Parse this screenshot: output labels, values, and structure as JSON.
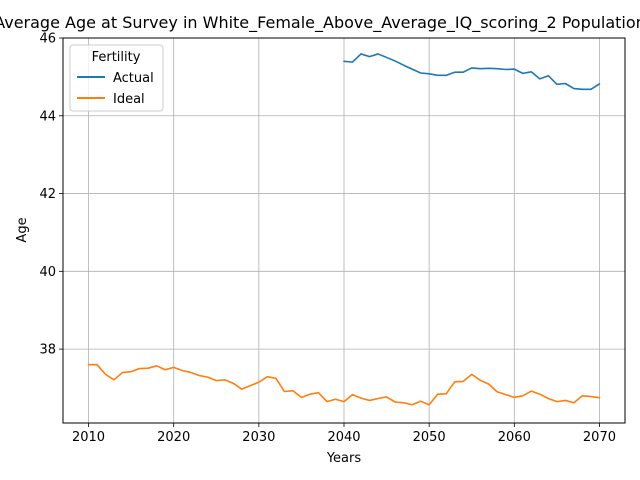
{
  "chart_data": {
    "type": "line",
    "title": "Average Age at Survey in White_Female_Above_Average_IQ_scoring_2 Population",
    "xlabel": "Years",
    "ylabel": "Age",
    "xlim": [
      2007,
      2073
    ],
    "ylim": [
      36.1,
      46.0
    ],
    "xticks": [
      2010,
      2020,
      2030,
      2040,
      2050,
      2060,
      2070
    ],
    "yticks": [
      38,
      40,
      42,
      44,
      46
    ],
    "grid": true,
    "legend": {
      "title": "Fertility",
      "placement": "upper-left"
    },
    "series": [
      {
        "name": "Actual",
        "color": "#1f77b4",
        "x": [
          2040,
          2041,
          2042,
          2043,
          2044,
          2045,
          2046,
          2047,
          2048,
          2049,
          2050,
          2051,
          2052,
          2053,
          2054,
          2055,
          2056,
          2057,
          2058,
          2059,
          2060,
          2061,
          2062,
          2063,
          2064,
          2065,
          2066,
          2067,
          2068,
          2069,
          2070
        ],
        "values": [
          45.4,
          45.38,
          45.59,
          45.52,
          45.59,
          45.5,
          45.41,
          45.3,
          45.2,
          45.1,
          45.08,
          45.04,
          45.04,
          45.12,
          45.12,
          45.23,
          45.21,
          45.22,
          45.21,
          45.19,
          45.2,
          45.09,
          45.13,
          44.95,
          45.03,
          44.81,
          44.83,
          44.7,
          44.68,
          44.68,
          44.82
        ]
      },
      {
        "name": "Ideal",
        "color": "#ff7f0e",
        "x": [
          2010,
          2011,
          2012,
          2013,
          2014,
          2015,
          2016,
          2017,
          2018,
          2019,
          2020,
          2021,
          2022,
          2023,
          2024,
          2025,
          2026,
          2027,
          2028,
          2029,
          2030,
          2031,
          2032,
          2033,
          2034,
          2035,
          2036,
          2037,
          2038,
          2039,
          2040,
          2041,
          2042,
          2043,
          2044,
          2045,
          2046,
          2047,
          2048,
          2049,
          2050,
          2051,
          2052,
          2053,
          2054,
          2055,
          2056,
          2057,
          2058,
          2059,
          2060,
          2061,
          2062,
          2063,
          2064,
          2065,
          2066,
          2067,
          2068,
          2069,
          2070
        ],
        "values": [
          37.6,
          37.6,
          37.35,
          37.21,
          37.4,
          37.42,
          37.5,
          37.51,
          37.57,
          37.47,
          37.53,
          37.45,
          37.4,
          37.32,
          37.28,
          37.19,
          37.21,
          37.12,
          36.97,
          37.06,
          37.15,
          37.29,
          37.25,
          36.91,
          36.93,
          36.76,
          36.84,
          36.88,
          36.65,
          36.71,
          36.65,
          36.83,
          36.74,
          36.68,
          36.73,
          36.77,
          36.64,
          36.62,
          36.57,
          36.66,
          36.57,
          36.84,
          36.85,
          37.16,
          37.17,
          37.35,
          37.2,
          37.1,
          36.9,
          36.83,
          36.76,
          36.8,
          36.92,
          36.84,
          36.73,
          36.65,
          36.68,
          36.62,
          36.8,
          36.78,
          36.75
        ]
      }
    ]
  }
}
